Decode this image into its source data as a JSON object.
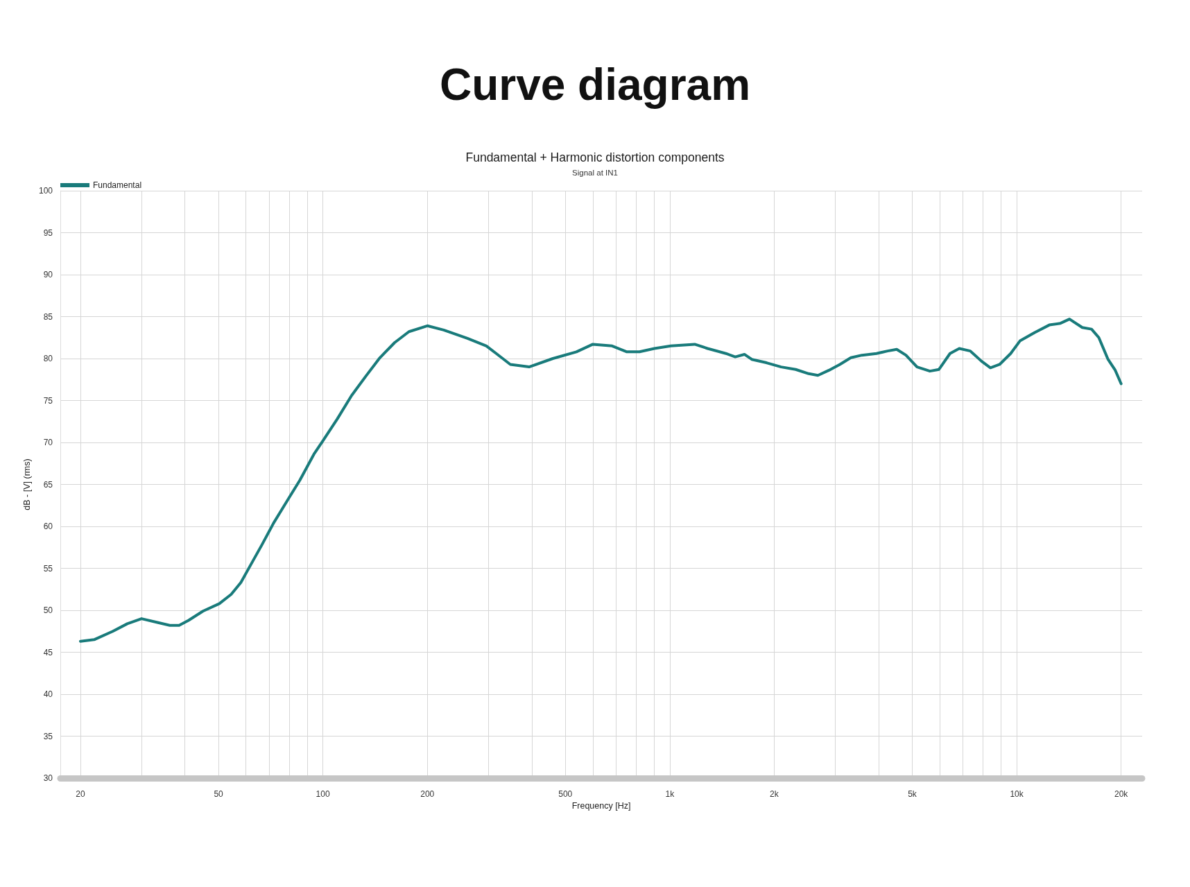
{
  "chart_data": {
    "type": "line",
    "title": "Curve diagram",
    "subtitle": "Fundamental + Harmonic distortion components",
    "annotations": [
      "Signal at IN1"
    ],
    "xlabel": "Frequency [Hz]",
    "ylabel": "dB - [V] (rms)",
    "log": "x",
    "xlim": [
      17.5,
      23000
    ],
    "xticks": [
      20,
      {
        "value": 30,
        "label": null
      },
      {
        "value": 40,
        "label": null
      },
      50,
      {
        "value": 60,
        "label": null
      },
      {
        "value": 70,
        "label": null
      },
      {
        "value": 80,
        "label": null
      },
      {
        "value": 90,
        "label": null
      },
      100,
      200,
      {
        "value": 300,
        "label": null
      },
      {
        "value": 400,
        "label": null
      },
      500,
      {
        "value": 600,
        "label": null
      },
      {
        "value": 700,
        "label": null
      },
      {
        "value": 800,
        "label": null
      },
      {
        "value": 900,
        "label": null
      },
      {
        "value": 1000,
        "label": "1k"
      },
      {
        "value": 2000,
        "label": "2k"
      },
      {
        "value": 3000,
        "label": null
      },
      {
        "value": 4000,
        "label": null
      },
      {
        "value": 5000,
        "label": "5k"
      },
      {
        "value": 6000,
        "label": null
      },
      {
        "value": 7000,
        "label": null
      },
      {
        "value": 8000,
        "label": null
      },
      {
        "value": 9000,
        "label": null
      },
      {
        "value": 10000,
        "label": "10k"
      },
      {
        "value": 20000,
        "label": "20k"
      }
    ],
    "ylim": [
      30,
      100
    ],
    "yticks": [
      30,
      35,
      40,
      45,
      50,
      55,
      60,
      65,
      70,
      75,
      80,
      85,
      90,
      95,
      100
    ],
    "grid": true,
    "legend": "top left",
    "marker": "none",
    "line_style": "solid",
    "series": [
      {
        "name": "Fundamental",
        "color": "#197b7b",
        "x": [
          20,
          21.9,
          24.8,
          27.3,
          30,
          33,
          36.2,
          38.5,
          41,
          45.1,
          50.3,
          54.4,
          58,
          61.7,
          66.7,
          72.1,
          79.3,
          85.8,
          94.2,
          100,
          110,
          121,
          133,
          146,
          161,
          177,
          200,
          223,
          261,
          296,
          316,
          347,
          393,
          460,
          538,
          600,
          682,
          752,
          818,
          903,
          1007,
          1180,
          1285,
          1451,
          1544,
          1641,
          1723,
          1900,
          2094,
          2307,
          2514,
          2673,
          2876,
          3093,
          3327,
          3580,
          3945,
          4245,
          4510,
          4795,
          5161,
          5621,
          5971,
          6424,
          6832,
          7350,
          7910,
          8400,
          8930,
          9610,
          10220,
          11270,
          12420,
          13370,
          14200,
          15460,
          16440,
          17250,
          18340,
          19240,
          20000
        ],
        "values": [
          46.3,
          46.5,
          47.5,
          48.4,
          49.0,
          48.6,
          48.2,
          48.2,
          48.8,
          49.9,
          50.8,
          51.9,
          53.3,
          55.3,
          57.8,
          60.4,
          63.2,
          65.5,
          68.6,
          70.2,
          72.8,
          75.6,
          77.9,
          80.1,
          81.9,
          83.2,
          83.9,
          83.4,
          82.4,
          81.5,
          80.6,
          79.3,
          79.0,
          80.0,
          80.8,
          81.7,
          81.5,
          80.8,
          80.8,
          81.2,
          81.5,
          81.7,
          81.2,
          80.6,
          80.2,
          80.5,
          79.9,
          79.5,
          79.0,
          78.7,
          78.2,
          78.0,
          78.6,
          79.3,
          80.1,
          80.4,
          80.6,
          80.9,
          81.1,
          80.4,
          79.0,
          78.5,
          78.7,
          80.6,
          81.2,
          80.9,
          79.7,
          78.9,
          79.3,
          80.6,
          82.1,
          83.1,
          84.0,
          84.2,
          84.7,
          83.7,
          83.5,
          82.5,
          79.9,
          78.6,
          77.0
        ]
      }
    ]
  }
}
